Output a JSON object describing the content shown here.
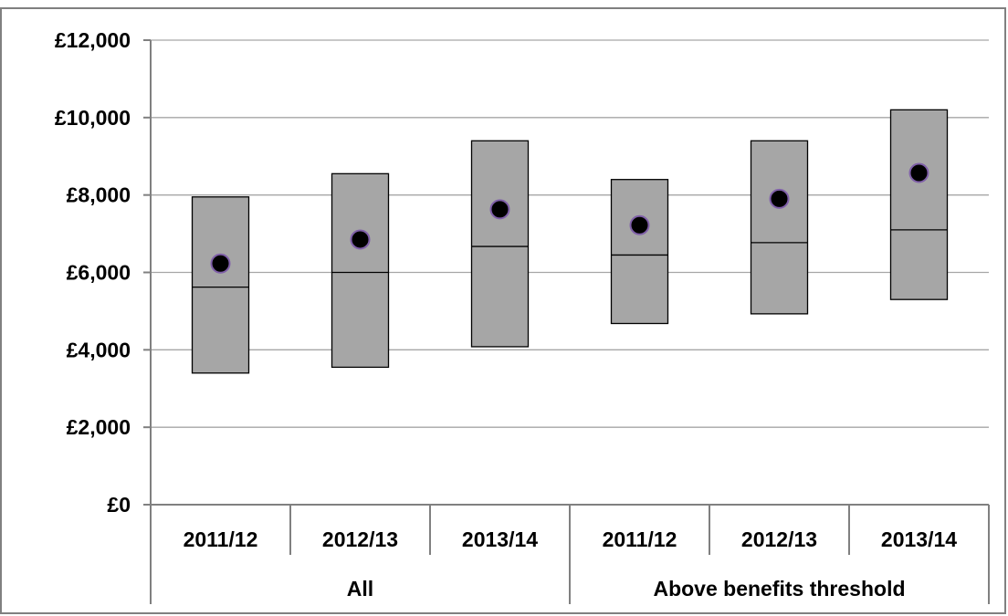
{
  "chart_data": {
    "type": "box",
    "title": "",
    "xlabel": "",
    "ylabel": "",
    "ylim": [
      0,
      12000
    ],
    "y_ticks": [
      "£0",
      "£2,000",
      "£4,000",
      "£6,000",
      "£8,000",
      "£10,000",
      "£12,000"
    ],
    "y_tick_values": [
      0,
      2000,
      4000,
      6000,
      8000,
      10000,
      12000
    ],
    "grid": true,
    "colors": {
      "box_fill": "#a6a6a6",
      "box_stroke": "#000000",
      "mean_marker": "#000000",
      "mean_marker_ring": "#7f5fa8",
      "grid": "#a6a6a6",
      "axis": "#808080"
    },
    "groups": [
      {
        "label": "All",
        "categories": [
          "2011/12",
          "2012/13",
          "2013/14"
        ]
      },
      {
        "label": "Above benefits threshold",
        "categories": [
          "2011/12",
          "2012/13",
          "2013/14"
        ]
      }
    ],
    "boxes": [
      {
        "group": "All",
        "category": "2011/12",
        "low": 3400,
        "median": 5620,
        "high": 7950,
        "mean": 6230
      },
      {
        "group": "All",
        "category": "2012/13",
        "low": 3550,
        "median": 6000,
        "high": 8550,
        "mean": 6850
      },
      {
        "group": "All",
        "category": "2013/14",
        "low": 4080,
        "median": 6670,
        "high": 9400,
        "mean": 7630
      },
      {
        "group": "Above benefits threshold",
        "category": "2011/12",
        "low": 4680,
        "median": 6450,
        "high": 8400,
        "mean": 7220
      },
      {
        "group": "Above benefits threshold",
        "category": "2012/13",
        "low": 4930,
        "median": 6770,
        "high": 9400,
        "mean": 7900
      },
      {
        "group": "Above benefits threshold",
        "category": "2013/14",
        "low": 5300,
        "median": 7100,
        "high": 10200,
        "mean": 8570
      }
    ]
  }
}
